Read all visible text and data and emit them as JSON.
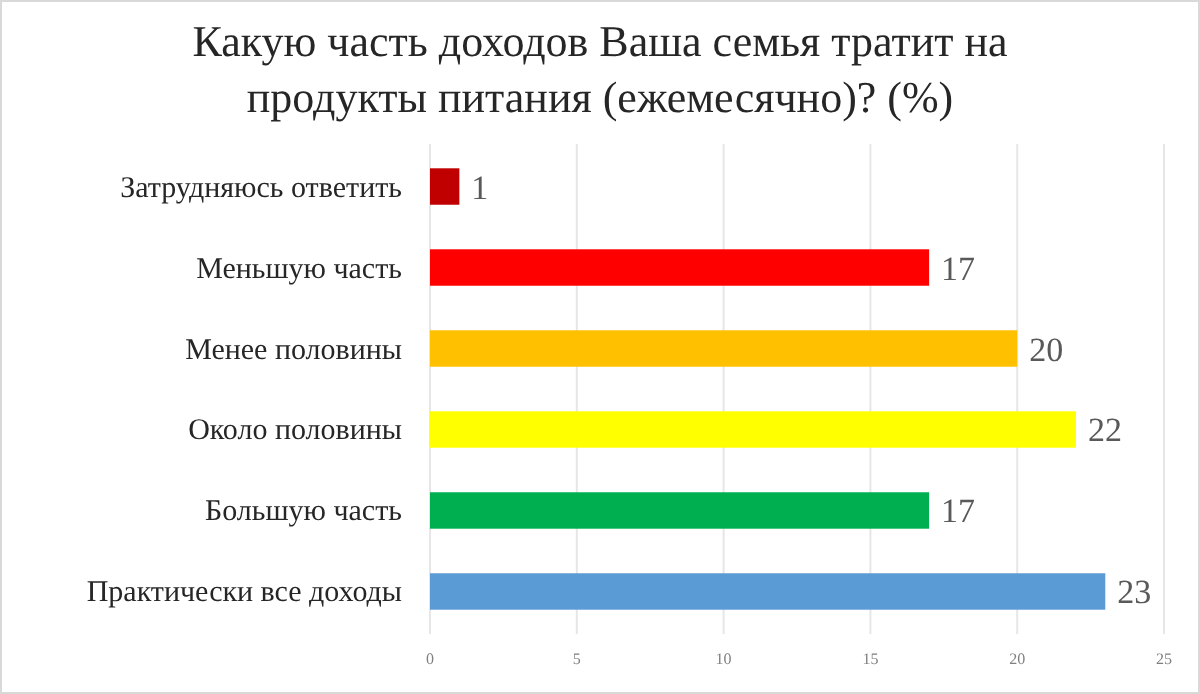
{
  "chart_data": {
    "type": "bar",
    "orientation": "horizontal",
    "title": "Какую часть доходов Ваша семья тратит на продукты питания (ежемесячно)? (%)",
    "categories": [
      "Затрудняюсь ответить",
      "Меньшую часть",
      "Менее половины",
      "Около половины",
      "Большую часть",
      "Практически все доходы"
    ],
    "values": [
      1,
      17,
      20,
      22,
      17,
      23
    ],
    "colors": [
      "#c00000",
      "#ff0000",
      "#ffc000",
      "#ffff00",
      "#00b050",
      "#5b9bd5"
    ],
    "xlim": [
      0,
      25
    ],
    "xticks": [
      0,
      5,
      10,
      15,
      20,
      25
    ],
    "grid": "x",
    "data_labels": true
  }
}
